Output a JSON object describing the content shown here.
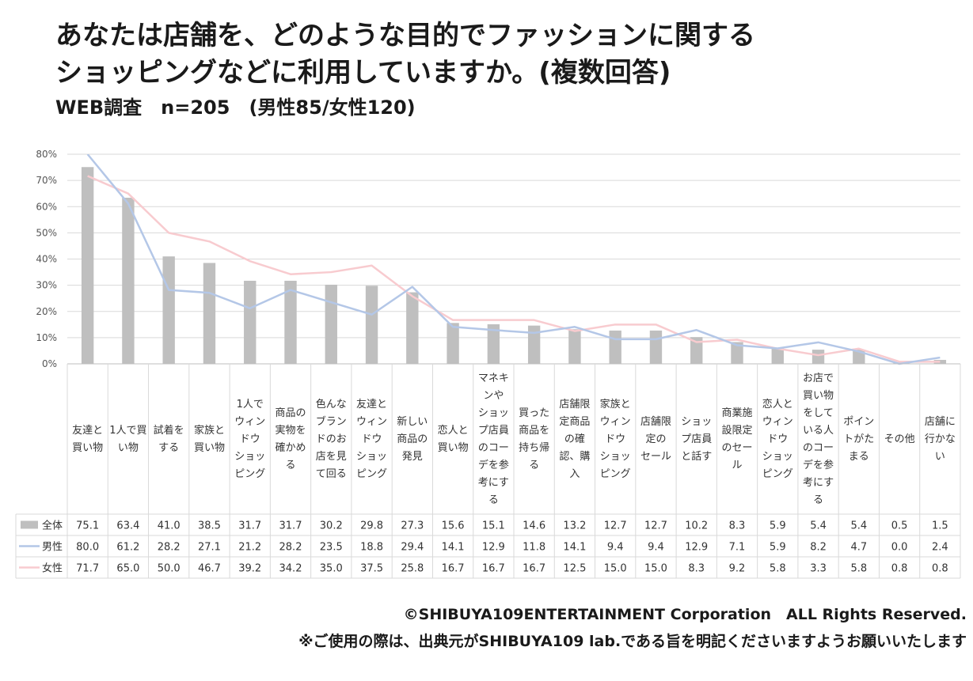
{
  "title_line1": "あなたは店舗を、どのような目的でファッションに関する",
  "title_line2": "ショッピングなどに利用していますか。(複数回答)",
  "subtitle": "WEB調査　n=205　(男性85/女性120)",
  "copyright": "©SHIBUYA109ENTERTAINMENT Corporation　ALL Rights Reserved.",
  "notice": "※ご使用の際は、出典元がSHIBUYA109 lab.である旨を明記くださいますようお願いいたします",
  "chart_data": {
    "type": "bar",
    "categories": [
      [
        "友達と",
        "買い物"
      ],
      [
        "1人で買",
        "い物"
      ],
      [
        "試着を",
        "する"
      ],
      [
        "家族と",
        "買い物"
      ],
      [
        "1人で",
        "ウィン",
        "ドウ",
        "ショッ",
        "ピング"
      ],
      [
        "商品の",
        "実物を",
        "確かめ",
        "る"
      ],
      [
        "色んな",
        "ブラン",
        "ドのお",
        "店を見",
        "て回る"
      ],
      [
        "友達と",
        "ウィン",
        "ドウ",
        "ショッ",
        "ピング"
      ],
      [
        "新しい",
        "商品の",
        "発見"
      ],
      [
        "恋人と",
        "買い物"
      ],
      [
        "マネキ",
        "ンや",
        "ショッ",
        "プ店員",
        "のコー",
        "デを参",
        "考にす",
        "る"
      ],
      [
        "買った",
        "商品を",
        "持ち帰",
        "る"
      ],
      [
        "店舗限",
        "定商品",
        "の確",
        "認、購",
        "入"
      ],
      [
        "家族と",
        "ウィン",
        "ドウ",
        "ショッ",
        "ピング"
      ],
      [
        "店舗限",
        "定の",
        "セール"
      ],
      [
        "ショッ",
        "プ店員",
        "と話す"
      ],
      [
        "商業施",
        "設限定",
        "のセー",
        "ル"
      ],
      [
        "恋人と",
        "ウィン",
        "ドウ",
        "ショッ",
        "ピング"
      ],
      [
        "お店で",
        "買い物",
        "をして",
        "いる人",
        "のコー",
        "デを参",
        "考にす",
        "る"
      ],
      [
        "ポイン",
        "トがた",
        "まる"
      ],
      [
        "その他"
      ],
      [
        "店舗に",
        "行かな",
        "い"
      ]
    ],
    "series": [
      {
        "name": "全体",
        "kind": "bar",
        "color": "#bfbfbf",
        "values": [
          75.1,
          63.4,
          41.0,
          38.5,
          31.7,
          31.7,
          30.2,
          29.8,
          27.3,
          15.6,
          15.1,
          14.6,
          13.2,
          12.7,
          12.7,
          10.2,
          8.3,
          5.9,
          5.4,
          5.4,
          0.5,
          1.5
        ],
        "labels": [
          "75.1",
          "63.4",
          "41.0",
          "38.5",
          "31.7",
          "31.7",
          "30.2",
          "29.8",
          "27.3",
          "15.6",
          "15.1",
          "14.6",
          "13.2",
          "12.7",
          "12.7",
          "10.2",
          "8.3",
          "5.9",
          "5.4",
          "5.4",
          "0.5",
          "1.5"
        ]
      },
      {
        "name": "男性",
        "kind": "line",
        "color": "#b4c7e7",
        "values": [
          80.0,
          61.2,
          28.2,
          27.1,
          21.2,
          28.2,
          23.5,
          18.8,
          29.4,
          14.1,
          12.9,
          11.8,
          14.1,
          9.4,
          9.4,
          12.9,
          7.1,
          5.9,
          8.2,
          4.7,
          0.0,
          2.4
        ],
        "labels": [
          "80.0",
          "61.2",
          "28.2",
          "27.1",
          "21.2",
          "28.2",
          "23.5",
          "18.8",
          "29.4",
          "14.1",
          "12.9",
          "11.8",
          "14.1",
          "9.4",
          "9.4",
          "12.9",
          "7.1",
          "5.9",
          "8.2",
          "4.7",
          "0.0",
          "2.4"
        ]
      },
      {
        "name": "女性",
        "kind": "line",
        "color": "#f8cbcf",
        "values": [
          71.7,
          65.0,
          50.0,
          46.7,
          39.2,
          34.2,
          35.0,
          37.5,
          25.8,
          16.7,
          16.7,
          16.7,
          12.5,
          15.0,
          15.0,
          8.3,
          9.2,
          5.8,
          3.3,
          5.8,
          0.8,
          0.8
        ],
        "labels": [
          "71.7",
          "65.0",
          "50.0",
          "46.7",
          "39.2",
          "34.2",
          "35.0",
          "37.5",
          "25.8",
          "16.7",
          "16.7",
          "16.7",
          "12.5",
          "15.0",
          "15.0",
          "8.3",
          "9.2",
          "5.8",
          "3.3",
          "5.8",
          "0.8",
          "0.8"
        ]
      }
    ],
    "yticks": [
      "0%",
      "10%",
      "20%",
      "30%",
      "40%",
      "50%",
      "60%",
      "70%",
      "80%"
    ],
    "ylim": [
      0,
      80
    ],
    "grid": true,
    "legend": "data-table"
  }
}
